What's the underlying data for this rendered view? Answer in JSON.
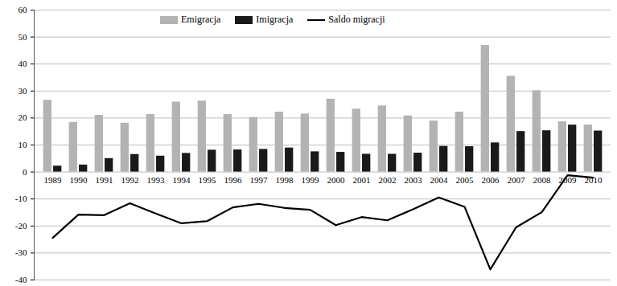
{
  "chart_data": {
    "type": "bar",
    "categories": [
      "1989",
      "1990",
      "1991",
      "1992",
      "1993",
      "1994",
      "1995",
      "1996",
      "1997",
      "1998",
      "1999",
      "2000",
      "2001",
      "2002",
      "2003",
      "2004",
      "2005",
      "2006",
      "2007",
      "2008",
      "2009",
      "2010"
    ],
    "series": [
      {
        "name": "Emigracja",
        "type": "bar",
        "color": "#b3b3b3",
        "values": [
          26.6,
          18.4,
          21.0,
          18.1,
          21.3,
          25.9,
          26.3,
          21.3,
          20.2,
          22.2,
          21.5,
          27.0,
          23.3,
          24.5,
          20.8,
          18.9,
          22.2,
          46.9,
          35.5,
          30.1,
          18.6,
          17.4
        ]
      },
      {
        "name": "Imigracja",
        "type": "bar",
        "color": "#1a1a1a",
        "values": [
          2.2,
          2.6,
          5.0,
          6.5,
          5.9,
          6.9,
          8.1,
          8.2,
          8.4,
          8.9,
          7.5,
          7.3,
          6.6,
          6.6,
          7.0,
          9.5,
          9.4,
          10.8,
          15.0,
          15.3,
          17.4,
          15.2
        ]
      },
      {
        "name": "Saldo migracji",
        "type": "line",
        "color": "#000000",
        "values": [
          -24.4,
          -15.8,
          -16.0,
          -11.6,
          -15.4,
          -19.0,
          -18.2,
          -13.1,
          -11.8,
          -13.3,
          -14.0,
          -19.7,
          -16.7,
          -17.9,
          -13.8,
          -9.4,
          -12.9,
          -36.1,
          -20.5,
          -14.9,
          -1.2,
          -2.1
        ]
      }
    ],
    "ylim": [
      -40,
      60
    ],
    "yticks": [
      -40,
      -30,
      -20,
      -10,
      0,
      10,
      20,
      30,
      40,
      50,
      60
    ],
    "grid": true,
    "legend": "top"
  }
}
